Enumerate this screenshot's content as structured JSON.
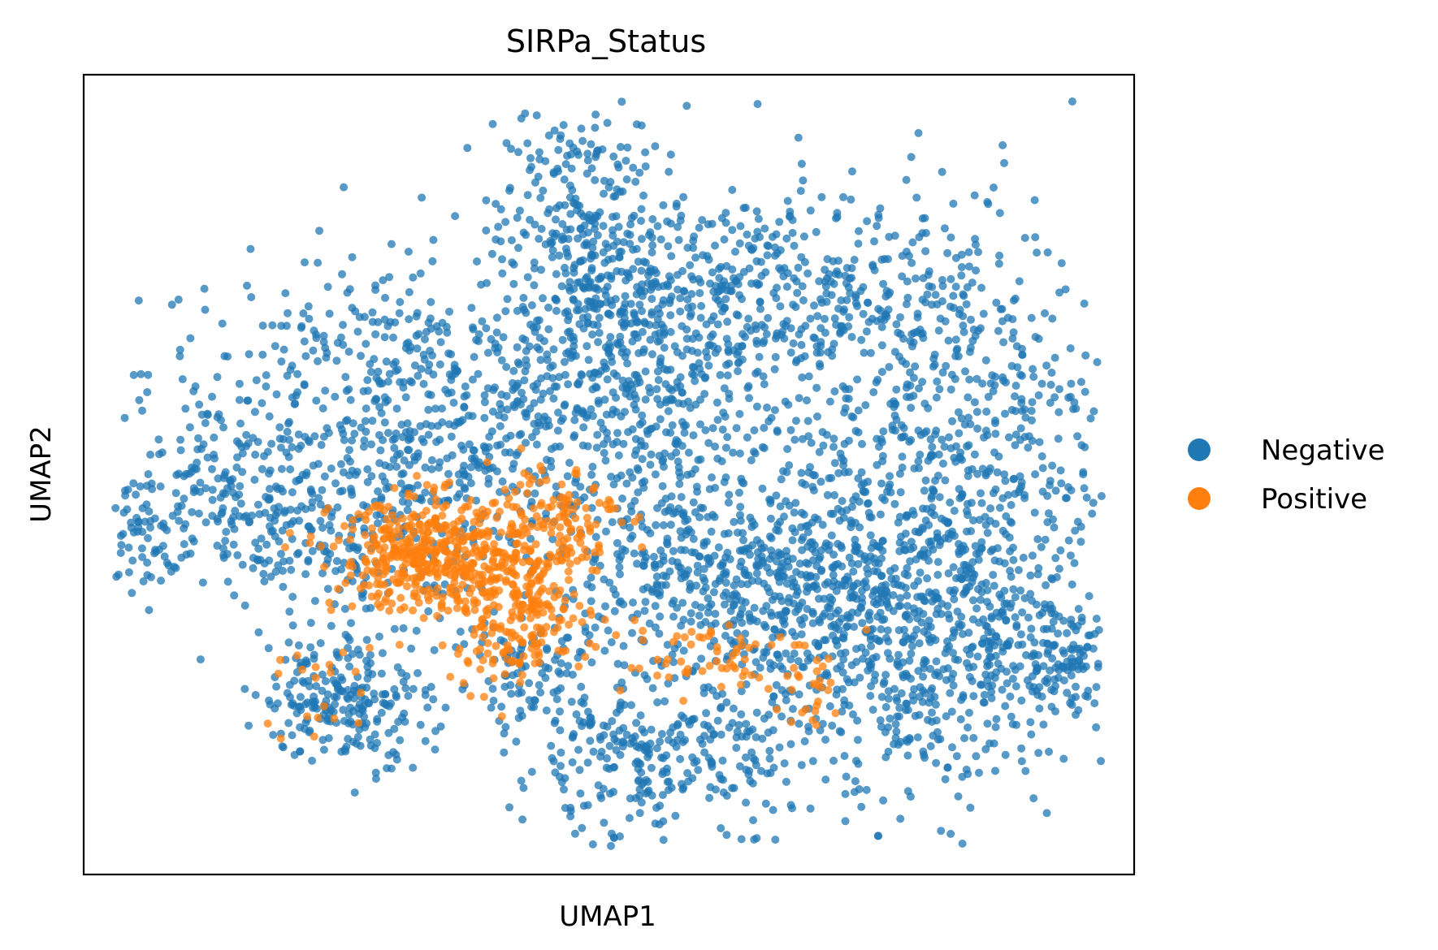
{
  "chart_data": {
    "type": "scatter",
    "title": "SIRPa_Status",
    "xlabel": "UMAP1",
    "ylabel": "UMAP2",
    "xlim": [
      0,
      100
    ],
    "ylim": [
      0,
      100
    ],
    "xticks": [],
    "yticks": [],
    "grid": false,
    "legend_position": "right",
    "series": [
      {
        "name": "Negative",
        "color": "#1f77b4"
      },
      {
        "name": "Positive",
        "color": "#ff7f0e"
      }
    ],
    "clusters": [
      {
        "series": "Negative",
        "x": 30,
        "y": 63,
        "sx": 12,
        "sy": 7,
        "n": 380
      },
      {
        "series": "Negative",
        "x": 14,
        "y": 47,
        "sx": 5,
        "sy": 5,
        "n": 160
      },
      {
        "series": "Negative",
        "x": 5,
        "y": 42,
        "sx": 2,
        "sy": 4,
        "n": 60
      },
      {
        "series": "Negative",
        "x": 47,
        "y": 80,
        "sx": 4,
        "sy": 10,
        "n": 260
      },
      {
        "series": "Negative",
        "x": 55,
        "y": 60,
        "sx": 8,
        "sy": 14,
        "n": 650
      },
      {
        "series": "Negative",
        "x": 66,
        "y": 72,
        "sx": 10,
        "sy": 6,
        "n": 320
      },
      {
        "series": "Negative",
        "x": 83,
        "y": 53,
        "sx": 7,
        "sy": 16,
        "n": 650
      },
      {
        "series": "Negative",
        "x": 76,
        "y": 28,
        "sx": 9,
        "sy": 10,
        "n": 650
      },
      {
        "series": "Negative",
        "x": 63,
        "y": 37,
        "sx": 9,
        "sy": 6,
        "n": 420
      },
      {
        "series": "Negative",
        "x": 26,
        "y": 42,
        "sx": 7,
        "sy": 5,
        "n": 220
      },
      {
        "series": "Negative",
        "x": 25,
        "y": 22,
        "sx": 4,
        "sy": 4,
        "n": 230
      },
      {
        "series": "Negative",
        "x": 53,
        "y": 14,
        "sx": 6,
        "sy": 5,
        "n": 250
      },
      {
        "series": "Negative",
        "x": 43,
        "y": 25,
        "sx": 4,
        "sy": 4,
        "n": 100
      },
      {
        "series": "Negative",
        "x": 93,
        "y": 28,
        "sx": 4,
        "sy": 4,
        "n": 160
      },
      {
        "series": "Negative",
        "x": 36,
        "y": 52,
        "sx": 7,
        "sy": 5,
        "n": 180
      },
      {
        "series": "Positive",
        "x": 33,
        "y": 40,
        "sx": 4.5,
        "sy": 3.5,
        "n": 420
      },
      {
        "series": "Positive",
        "x": 41,
        "y": 33,
        "sx": 3.5,
        "sy": 4.5,
        "n": 240
      },
      {
        "series": "Positive",
        "x": 45,
        "y": 45,
        "sx": 3,
        "sy": 3.5,
        "n": 120
      },
      {
        "series": "Positive",
        "x": 58,
        "y": 27,
        "sx": 5,
        "sy": 3,
        "n": 60
      },
      {
        "series": "Positive",
        "x": 69,
        "y": 23,
        "sx": 2,
        "sy": 2.5,
        "n": 25
      },
      {
        "series": "Positive",
        "x": 23,
        "y": 23,
        "sx": 3,
        "sy": 4,
        "n": 20
      }
    ]
  }
}
